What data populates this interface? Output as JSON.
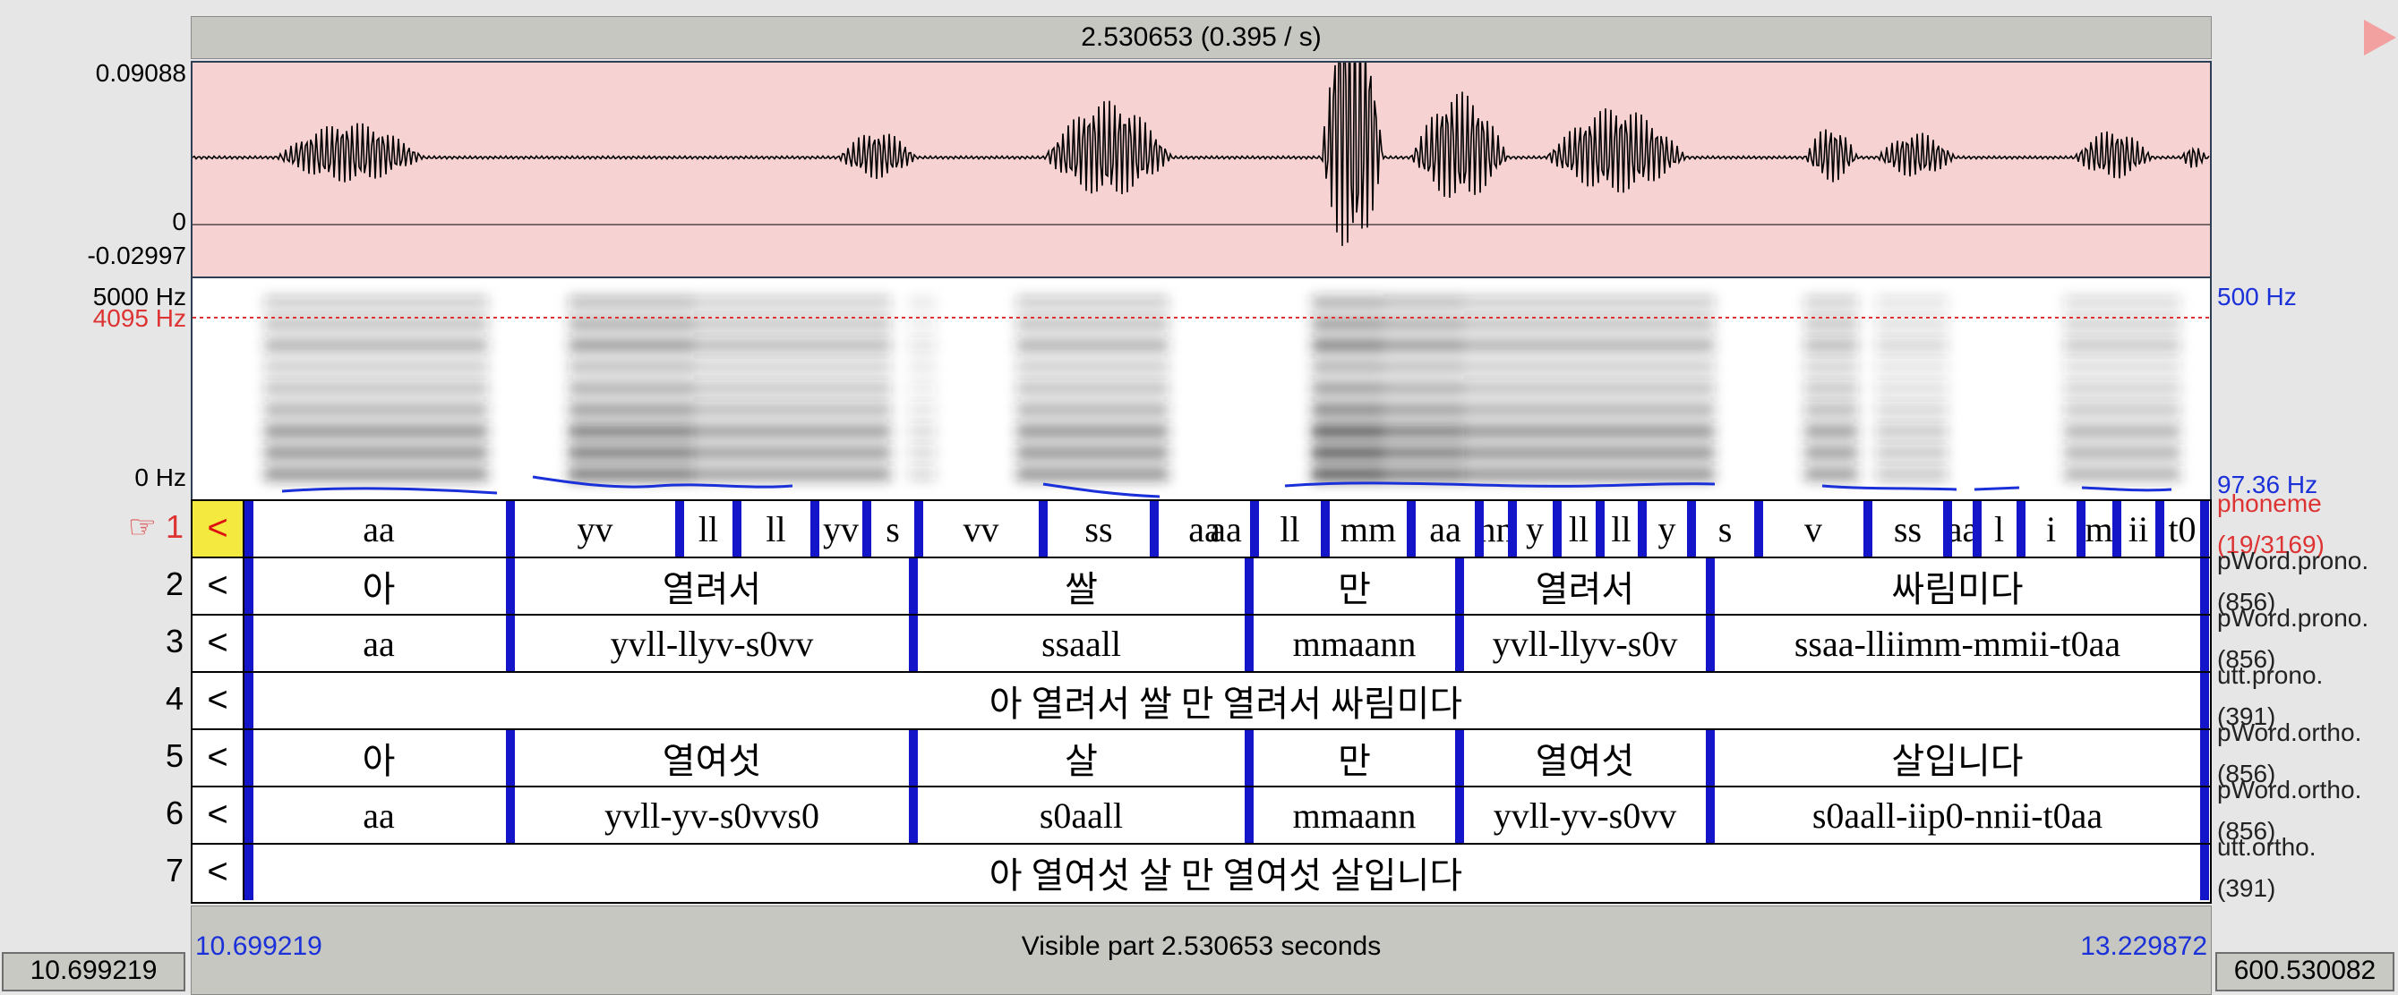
{
  "header": {
    "selection": "2.530653 (0.395 / s)"
  },
  "waveform": {
    "y_max": "0.09088",
    "y_zero": "0",
    "y_min": "-0.02997"
  },
  "spectrogram": {
    "freq_top": "5000 Hz",
    "freq_marker": "4095 Hz",
    "freq_bottom": "0 Hz",
    "pitch_top": "500 Hz",
    "pitch_value": "97.36 Hz"
  },
  "tiers": [
    {
      "num": "1",
      "marker": "☞",
      "nav": "<",
      "name": "phoneme",
      "count": "(19/3169)",
      "segments": [
        "aa",
        "yv",
        "ll",
        "ll",
        "yv",
        "s",
        "vv",
        "ss",
        "aa",
        "ll",
        "mm",
        "aa",
        "nn",
        "y",
        "ll",
        "ll",
        "y",
        "s",
        "v",
        "ss",
        "aa",
        "l",
        "i",
        "m",
        "ii",
        "t0",
        "aa"
      ]
    },
    {
      "num": "2",
      "nav": "<",
      "name": "pWord.prono.",
      "count": "(856)",
      "segments": [
        "아",
        "열려서",
        "쌀",
        "만",
        "열려서",
        "싸림미다"
      ]
    },
    {
      "num": "3",
      "nav": "<",
      "name": "pWord.prono.",
      "count": "(856)",
      "segments": [
        "aa",
        "yvll-llyv-s0vv",
        "ssaall",
        "mmaann",
        "yvll-llyv-s0v",
        "ssaa-lliimm-mmii-t0aa"
      ]
    },
    {
      "num": "4",
      "nav": "<",
      "name": "utt.prono.",
      "count": "(391)",
      "segments": [
        "아 열려서 쌀 만 열려서 싸림미다"
      ]
    },
    {
      "num": "5",
      "nav": "<",
      "name": "pWord.ortho.",
      "count": "(856)",
      "segments": [
        "아",
        "열여섯",
        "살",
        "만",
        "열여섯",
        "살입니다"
      ]
    },
    {
      "num": "6",
      "nav": "<",
      "name": "pWord.ortho.",
      "count": "(856)",
      "segments": [
        "aa",
        "yvll-yv-s0vvs0",
        "s0aall",
        "mmaann",
        "yvll-yv-s0vv",
        "s0aall-iip0-nnii-t0aa"
      ]
    },
    {
      "num": "7",
      "nav": "<",
      "name": "utt.ortho.",
      "count": "(391)",
      "segments": [
        "아 열여섯 살 만 열여섯 살입니다"
      ]
    }
  ],
  "footer": {
    "visible_start": "10.699219",
    "visible_label": "Visible part 2.530653 seconds",
    "visible_end": "13.229872",
    "total_start": "10.699219",
    "total_end": "600.530082"
  },
  "colors": {
    "wave_bg": "#f6d2d2",
    "boundary": "#1414c8",
    "pitch": "#1a30d8",
    "marker": "#d33"
  }
}
